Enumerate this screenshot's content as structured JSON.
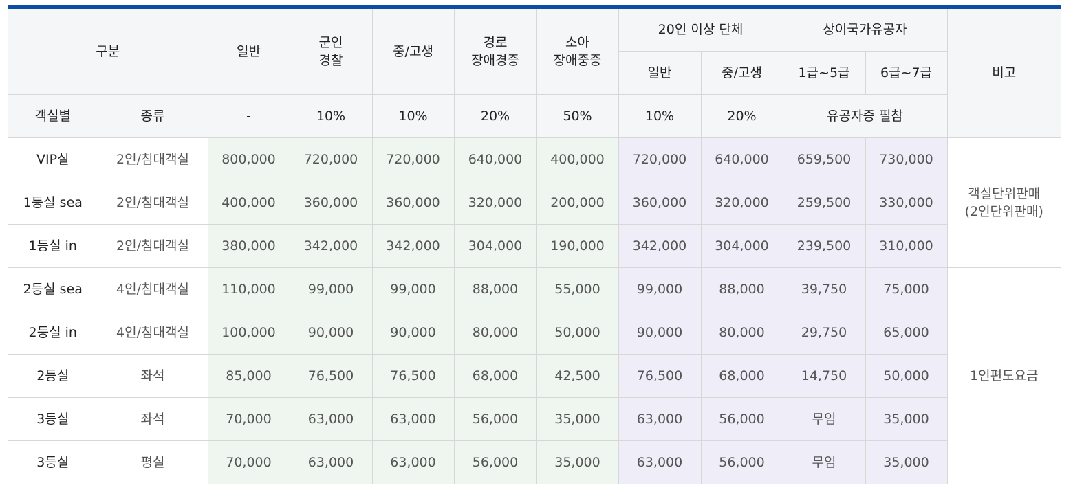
{
  "header": {
    "category": "구분",
    "general": "일반",
    "military": [
      "군인",
      "경찰"
    ],
    "student": "중/고생",
    "senior": [
      "경로",
      "장애경증"
    ],
    "child": [
      "소아",
      "장애중증"
    ],
    "group": "20인 이상 단체",
    "group_general": "일반",
    "group_student": "중/고생",
    "veteran": "상이국가유공자",
    "veteran_1_5": "1급~5급",
    "veteran_6_7": "6급~7급",
    "remarks": "비고",
    "room_class": "객실별",
    "room_type": "종류"
  },
  "discounts": {
    "general": "-",
    "military": "10%",
    "student": "10%",
    "senior": "20%",
    "child": "50%",
    "group_general": "10%",
    "group_student": "20%",
    "veteran": "유공자증 필참"
  },
  "rows": [
    {
      "class": "VIP실",
      "type": "2인/침대객실",
      "values": [
        "800,000",
        "720,000",
        "720,000",
        "640,000",
        "400,000",
        "720,000",
        "640,000",
        "659,500",
        "730,000"
      ]
    },
    {
      "class": "1등실 sea",
      "type": "2인/침대객실",
      "values": [
        "400,000",
        "360,000",
        "360,000",
        "320,000",
        "200,000",
        "360,000",
        "320,000",
        "259,500",
        "330,000"
      ]
    },
    {
      "class": "1등실 in",
      "type": "2인/침대객실",
      "values": [
        "380,000",
        "342,000",
        "342,000",
        "304,000",
        "190,000",
        "342,000",
        "304,000",
        "239,500",
        "310,000"
      ]
    },
    {
      "class": "2등실 sea",
      "type": "4인/침대객실",
      "values": [
        "110,000",
        "99,000",
        "99,000",
        "88,000",
        "55,000",
        "99,000",
        "88,000",
        "39,750",
        "75,000"
      ]
    },
    {
      "class": "2등실 in",
      "type": "4인/침대객실",
      "values": [
        "100,000",
        "90,000",
        "90,000",
        "80,000",
        "50,000",
        "90,000",
        "80,000",
        "29,750",
        "65,000"
      ]
    },
    {
      "class": "2등실",
      "type": "좌석",
      "values": [
        "85,000",
        "76,500",
        "76,500",
        "68,000",
        "42,500",
        "76,500",
        "68,000",
        "14,750",
        "50,000"
      ]
    },
    {
      "class": "3등실",
      "type": "좌석",
      "values": [
        "70,000",
        "63,000",
        "63,000",
        "56,000",
        "35,000",
        "63,000",
        "56,000",
        "무임",
        "35,000"
      ]
    },
    {
      "class": "3등실",
      "type": "평실",
      "values": [
        "70,000",
        "63,000",
        "63,000",
        "56,000",
        "35,000",
        "63,000",
        "56,000",
        "무임",
        "35,000"
      ]
    }
  ],
  "notes": {
    "room_unit": [
      "객실단위판매",
      "(2인단위판매)"
    ],
    "per_person": "1인편도요금"
  },
  "colors": {
    "top_bar": "#0b4ea2",
    "header_bg": "#f5f6f8",
    "green_cells": "#eef6ef",
    "purple_cells": "#efedf8"
  }
}
